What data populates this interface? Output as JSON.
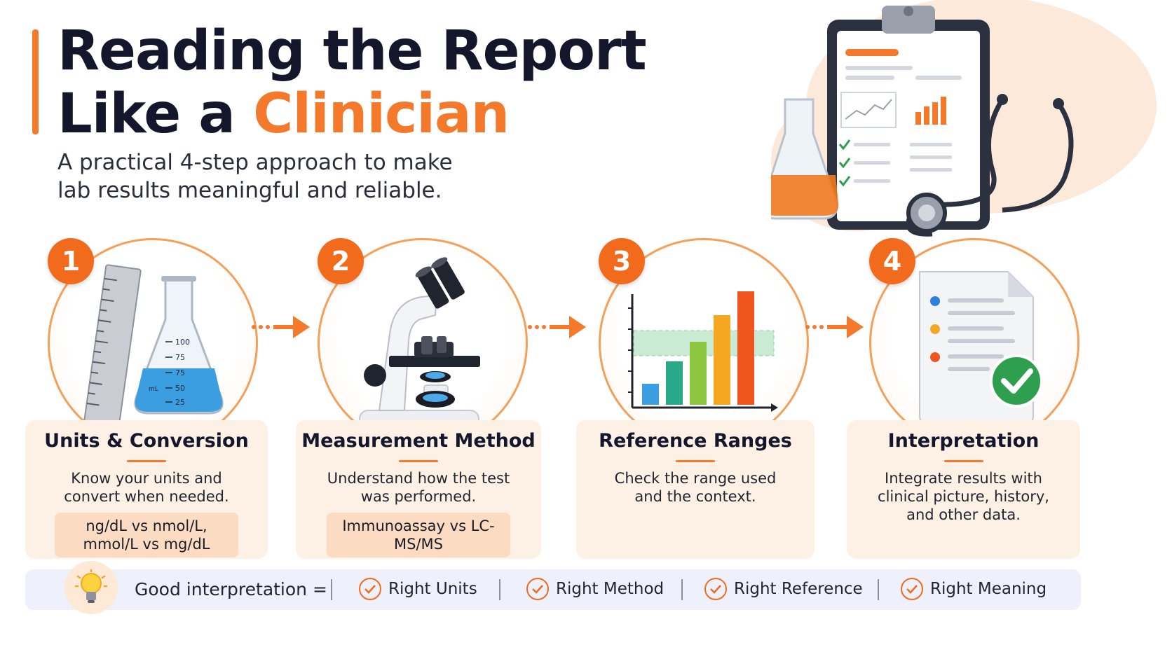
{
  "header": {
    "title_line1": "Reading the Report",
    "title_line2_prefix": "Like a ",
    "title_line2_highlight": "Clinician",
    "subtitle": "A practical 4-step approach to make lab results meaningful and reliable."
  },
  "colors": {
    "accent": "#f26b1d",
    "dark_text": "#14172b",
    "card_bg": "#fdf1e6",
    "pill_bg": "#fbdcc2",
    "footer_bg": "#eef1fb",
    "check_green": "#2e9e4f"
  },
  "steps": [
    {
      "number": "1",
      "icon": "ruler-and-flask-icon",
      "flask_marks": [
        "100",
        "75",
        "75",
        "50",
        "25"
      ],
      "flask_unit_mark": "mL",
      "title": "Units & Conversion",
      "description": "Know your units and convert when needed.",
      "example": "ng/dL vs nmol/L, mmol/L vs mg/dL"
    },
    {
      "number": "2",
      "icon": "microscope-icon",
      "title": "Measurement Method",
      "description": "Understand how the test was performed.",
      "example": "Immunoassay vs LC-MS/MS"
    },
    {
      "number": "3",
      "icon": "bar-chart-with-range-icon",
      "title": "Reference Ranges",
      "description": "Check the range used and the context."
    },
    {
      "number": "4",
      "icon": "document-check-icon",
      "title": "Interpretation",
      "description": "Integrate results with clinical picture, history, and other data."
    }
  ],
  "footer": {
    "icon": "lightbulb-icon",
    "label": "Good interpretation =",
    "items": [
      "Right Units",
      "Right Method",
      "Right Reference",
      "Right Meaning"
    ]
  }
}
